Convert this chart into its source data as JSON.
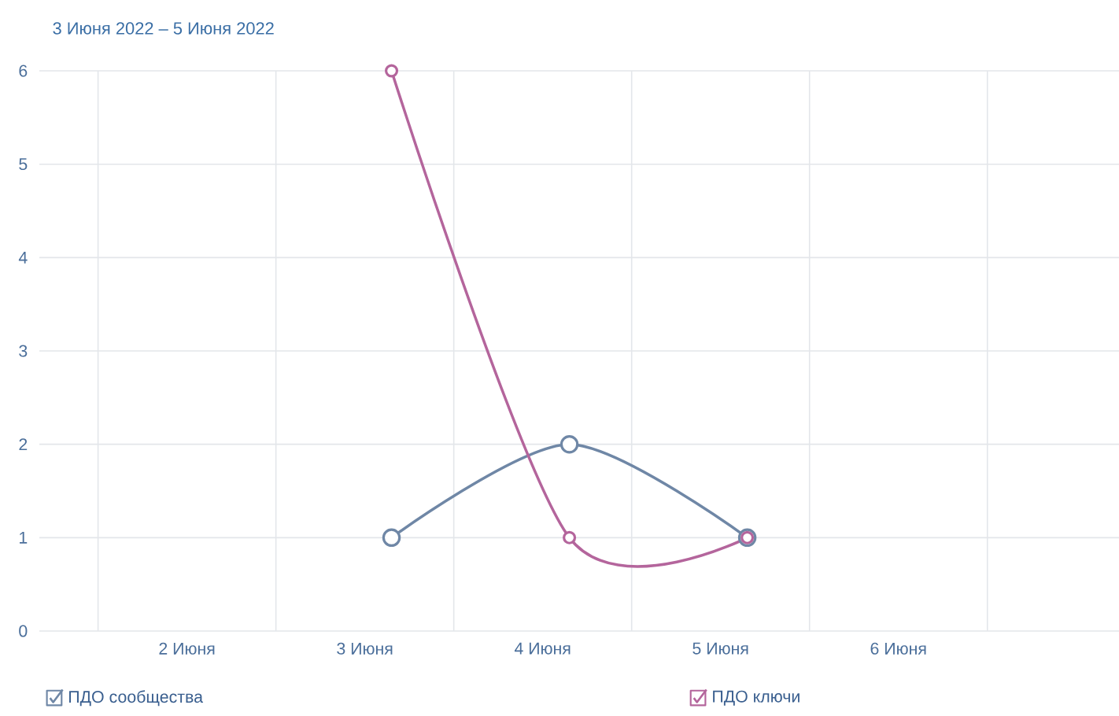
{
  "chart_data": {
    "type": "line",
    "title": "3 Июня 2022 – 5 Июня 2022",
    "x": [
      3.15,
      4.15,
      5.15
    ],
    "xlim": [
      1.17,
      7.24
    ],
    "xticks": [
      {
        "value": 1.5,
        "label": null
      },
      {
        "value": 2,
        "label": "2 Июня"
      },
      {
        "value": 2.5,
        "label": null
      },
      {
        "value": 3,
        "label": "3 Июня"
      },
      {
        "value": 3.5,
        "label": null
      },
      {
        "value": 4,
        "label": "4 Июня"
      },
      {
        "value": 4.5,
        "label": null
      },
      {
        "value": 5,
        "label": "5 Июня"
      },
      {
        "value": 5.5,
        "label": null
      },
      {
        "value": 6,
        "label": "6 Июня"
      },
      {
        "value": 6.5,
        "label": null
      }
    ],
    "ylim": [
      0,
      6
    ],
    "yticks": [
      0,
      1,
      2,
      3,
      4,
      5,
      6
    ],
    "grid": true,
    "legend": "bottom left",
    "marker": "circle",
    "series": [
      {
        "name": "ПДО сообщества",
        "color": "#6f87a6",
        "values": [
          1,
          2,
          1
        ]
      },
      {
        "name": "ПДО ключи",
        "color": "#b4659c",
        "values": [
          6,
          1,
          1
        ]
      }
    ]
  }
}
